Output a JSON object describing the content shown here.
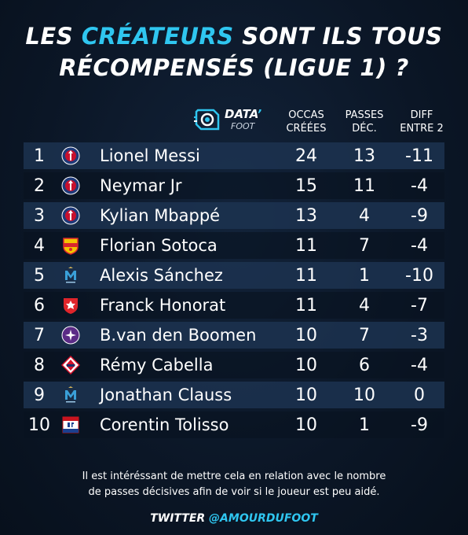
{
  "title": {
    "line1_pre": "LES ",
    "line1_accent": "CRÉATEURS",
    "line1_post": " SONT ILS TOUS",
    "line2": "RÉCOMPENSÉS (LIGUE 1) ?"
  },
  "logo": {
    "main": "DATA",
    "apos": "’",
    "sub": "FOOT"
  },
  "columns": {
    "c1": [
      "OCCAS",
      "CRÉÉES"
    ],
    "c2": [
      "PASSES",
      "DÉC."
    ],
    "c3": [
      "DIFF",
      "ENTRE 2"
    ]
  },
  "colors": {
    "accent": "#2fc6f0",
    "psg": "#1f3a7a",
    "lens": "#d9262d",
    "om": "#3aa0d8",
    "reims": "#e0252b",
    "tfc": "#5b2b86",
    "losc": "#d4112a",
    "ol": "#c9141f"
  },
  "rows": [
    {
      "rank": "1",
      "name": "Lionel Messi",
      "occas": "24",
      "passes": "13",
      "diff": "-11",
      "club_icon": "psg-crest-icon"
    },
    {
      "rank": "2",
      "name": "Neymar Jr",
      "occas": "15",
      "passes": "11",
      "diff": "-4",
      "club_icon": "psg-crest-icon"
    },
    {
      "rank": "3",
      "name": "Kylian Mbappé",
      "occas": "13",
      "passes": "4",
      "diff": "-9",
      "club_icon": "psg-crest-icon"
    },
    {
      "rank": "4",
      "name": "Florian Sotoca",
      "occas": "11",
      "passes": "7",
      "diff": "-4",
      "club_icon": "lens-crest-icon"
    },
    {
      "rank": "5",
      "name": "Alexis Sánchez",
      "occas": "11",
      "passes": "1",
      "diff": "-10",
      "club_icon": "om-crest-icon"
    },
    {
      "rank": "6",
      "name": "Franck Honorat",
      "occas": "11",
      "passes": "4",
      "diff": "-7",
      "club_icon": "reims-crest-icon"
    },
    {
      "rank": "7",
      "name": "B.van den Boomen",
      "occas": "10",
      "passes": "7",
      "diff": "-3",
      "club_icon": "toulouse-crest-icon"
    },
    {
      "rank": "8",
      "name": "Rémy Cabella",
      "occas": "10",
      "passes": "6",
      "diff": "-4",
      "club_icon": "lille-crest-icon"
    },
    {
      "rank": "9",
      "name": "Jonathan Clauss",
      "occas": "10",
      "passes": "10",
      "diff": "0",
      "club_icon": "om-crest-icon"
    },
    {
      "rank": "10",
      "name": "Corentin Tolisso",
      "occas": "10",
      "passes": "1",
      "diff": "-9",
      "club_icon": "lyon-crest-icon"
    }
  ],
  "footer": {
    "line1": "Il est intéréssant de mettre cela en relation avec le nombre",
    "line2": "de passes décisives afin de voir si le joueur est peu aidé."
  },
  "twitter": {
    "label": "TWITTER ",
    "handle": "@AMOURDUFOOT"
  }
}
